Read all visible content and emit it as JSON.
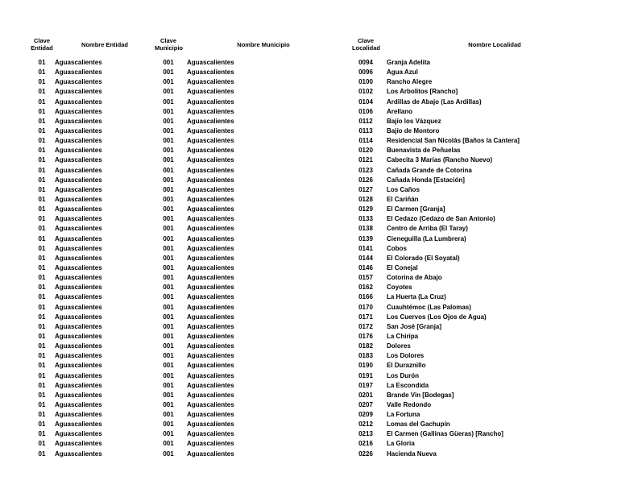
{
  "page": {
    "background": "#ffffff",
    "text_color": "#000000"
  },
  "table": {
    "headers": {
      "clave_entidad": "Clave Entidad",
      "nombre_entidad": "Nombre Entidad",
      "clave_municipio": "Clave Municipio",
      "nombre_municipio": "Nombre Municipio",
      "clave_localidad": "Clave Localidad",
      "nombre_localidad": "Nombre Localidad"
    },
    "rows": [
      {
        "clave_entidad": "01",
        "nombre_entidad": "Aguascalientes",
        "clave_municipio": "001",
        "nombre_municipio": "Aguascalientes",
        "clave_localidad": "0094",
        "nombre_localidad": "Granja Adelita"
      },
      {
        "clave_entidad": "01",
        "nombre_entidad": "Aguascalientes",
        "clave_municipio": "001",
        "nombre_municipio": "Aguascalientes",
        "clave_localidad": "0096",
        "nombre_localidad": "Agua Azul"
      },
      {
        "clave_entidad": "01",
        "nombre_entidad": "Aguascalientes",
        "clave_municipio": "001",
        "nombre_municipio": "Aguascalientes",
        "clave_localidad": "0100",
        "nombre_localidad": "Rancho Alegre"
      },
      {
        "clave_entidad": "01",
        "nombre_entidad": "Aguascalientes",
        "clave_municipio": "001",
        "nombre_municipio": "Aguascalientes",
        "clave_localidad": "0102",
        "nombre_localidad": "Los Arbolitos [Rancho]"
      },
      {
        "clave_entidad": "01",
        "nombre_entidad": "Aguascalientes",
        "clave_municipio": "001",
        "nombre_municipio": "Aguascalientes",
        "clave_localidad": "0104",
        "nombre_localidad": "Ardillas de Abajo (Las Ardillas)"
      },
      {
        "clave_entidad": "01",
        "nombre_entidad": "Aguascalientes",
        "clave_municipio": "001",
        "nombre_municipio": "Aguascalientes",
        "clave_localidad": "0106",
        "nombre_localidad": "Arellano"
      },
      {
        "clave_entidad": "01",
        "nombre_entidad": "Aguascalientes",
        "clave_municipio": "001",
        "nombre_municipio": "Aguascalientes",
        "clave_localidad": "0112",
        "nombre_localidad": "Bajío los Vázquez"
      },
      {
        "clave_entidad": "01",
        "nombre_entidad": "Aguascalientes",
        "clave_municipio": "001",
        "nombre_municipio": "Aguascalientes",
        "clave_localidad": "0113",
        "nombre_localidad": "Bajío de Montoro"
      },
      {
        "clave_entidad": "01",
        "nombre_entidad": "Aguascalientes",
        "clave_municipio": "001",
        "nombre_municipio": "Aguascalientes",
        "clave_localidad": "0114",
        "nombre_localidad": "Residencial San Nicolás [Baños la Cantera]"
      },
      {
        "clave_entidad": "01",
        "nombre_entidad": "Aguascalientes",
        "clave_municipio": "001",
        "nombre_municipio": "Aguascalientes",
        "clave_localidad": "0120",
        "nombre_localidad": "Buenavista de Peñuelas"
      },
      {
        "clave_entidad": "01",
        "nombre_entidad": "Aguascalientes",
        "clave_municipio": "001",
        "nombre_municipio": "Aguascalientes",
        "clave_localidad": "0121",
        "nombre_localidad": "Cabecita 3 Marías (Rancho Nuevo)"
      },
      {
        "clave_entidad": "01",
        "nombre_entidad": "Aguascalientes",
        "clave_municipio": "001",
        "nombre_municipio": "Aguascalientes",
        "clave_localidad": "0123",
        "nombre_localidad": "Cañada Grande de Cotorina"
      },
      {
        "clave_entidad": "01",
        "nombre_entidad": "Aguascalientes",
        "clave_municipio": "001",
        "nombre_municipio": "Aguascalientes",
        "clave_localidad": "0126",
        "nombre_localidad": "Cañada Honda [Estación]"
      },
      {
        "clave_entidad": "01",
        "nombre_entidad": "Aguascalientes",
        "clave_municipio": "001",
        "nombre_municipio": "Aguascalientes",
        "clave_localidad": "0127",
        "nombre_localidad": "Los Caños"
      },
      {
        "clave_entidad": "01",
        "nombre_entidad": "Aguascalientes",
        "clave_municipio": "001",
        "nombre_municipio": "Aguascalientes",
        "clave_localidad": "0128",
        "nombre_localidad": "El Cariñán"
      },
      {
        "clave_entidad": "01",
        "nombre_entidad": "Aguascalientes",
        "clave_municipio": "001",
        "nombre_municipio": "Aguascalientes",
        "clave_localidad": "0129",
        "nombre_localidad": "El Carmen [Granja]"
      },
      {
        "clave_entidad": "01",
        "nombre_entidad": "Aguascalientes",
        "clave_municipio": "001",
        "nombre_municipio": "Aguascalientes",
        "clave_localidad": "0133",
        "nombre_localidad": "El Cedazo (Cedazo de San Antonio)"
      },
      {
        "clave_entidad": "01",
        "nombre_entidad": "Aguascalientes",
        "clave_municipio": "001",
        "nombre_municipio": "Aguascalientes",
        "clave_localidad": "0138",
        "nombre_localidad": "Centro de Arriba (El Taray)"
      },
      {
        "clave_entidad": "01",
        "nombre_entidad": "Aguascalientes",
        "clave_municipio": "001",
        "nombre_municipio": "Aguascalientes",
        "clave_localidad": "0139",
        "nombre_localidad": "Cieneguilla (La Lumbrera)"
      },
      {
        "clave_entidad": "01",
        "nombre_entidad": "Aguascalientes",
        "clave_municipio": "001",
        "nombre_municipio": "Aguascalientes",
        "clave_localidad": "0141",
        "nombre_localidad": "Cobos"
      },
      {
        "clave_entidad": "01",
        "nombre_entidad": "Aguascalientes",
        "clave_municipio": "001",
        "nombre_municipio": "Aguascalientes",
        "clave_localidad": "0144",
        "nombre_localidad": "El Colorado (El Soyatal)"
      },
      {
        "clave_entidad": "01",
        "nombre_entidad": "Aguascalientes",
        "clave_municipio": "001",
        "nombre_municipio": "Aguascalientes",
        "clave_localidad": "0146",
        "nombre_localidad": "El Conejal"
      },
      {
        "clave_entidad": "01",
        "nombre_entidad": "Aguascalientes",
        "clave_municipio": "001",
        "nombre_municipio": "Aguascalientes",
        "clave_localidad": "0157",
        "nombre_localidad": "Cotorina de Abajo"
      },
      {
        "clave_entidad": "01",
        "nombre_entidad": "Aguascalientes",
        "clave_municipio": "001",
        "nombre_municipio": "Aguascalientes",
        "clave_localidad": "0162",
        "nombre_localidad": "Coyotes"
      },
      {
        "clave_entidad": "01",
        "nombre_entidad": "Aguascalientes",
        "clave_municipio": "001",
        "nombre_municipio": "Aguascalientes",
        "clave_localidad": "0166",
        "nombre_localidad": "La Huerta (La Cruz)"
      },
      {
        "clave_entidad": "01",
        "nombre_entidad": "Aguascalientes",
        "clave_municipio": "001",
        "nombre_municipio": "Aguascalientes",
        "clave_localidad": "0170",
        "nombre_localidad": "Cuauhtémoc (Las Palomas)"
      },
      {
        "clave_entidad": "01",
        "nombre_entidad": "Aguascalientes",
        "clave_municipio": "001",
        "nombre_municipio": "Aguascalientes",
        "clave_localidad": "0171",
        "nombre_localidad": "Los Cuervos (Los Ojos de Agua)"
      },
      {
        "clave_entidad": "01",
        "nombre_entidad": "Aguascalientes",
        "clave_municipio": "001",
        "nombre_municipio": "Aguascalientes",
        "clave_localidad": "0172",
        "nombre_localidad": "San José [Granja]"
      },
      {
        "clave_entidad": "01",
        "nombre_entidad": "Aguascalientes",
        "clave_municipio": "001",
        "nombre_municipio": "Aguascalientes",
        "clave_localidad": "0176",
        "nombre_localidad": "La Chiripa"
      },
      {
        "clave_entidad": "01",
        "nombre_entidad": "Aguascalientes",
        "clave_municipio": "001",
        "nombre_municipio": "Aguascalientes",
        "clave_localidad": "0182",
        "nombre_localidad": "Dolores"
      },
      {
        "clave_entidad": "01",
        "nombre_entidad": "Aguascalientes",
        "clave_municipio": "001",
        "nombre_municipio": "Aguascalientes",
        "clave_localidad": "0183",
        "nombre_localidad": "Los Dolores"
      },
      {
        "clave_entidad": "01",
        "nombre_entidad": "Aguascalientes",
        "clave_municipio": "001",
        "nombre_municipio": "Aguascalientes",
        "clave_localidad": "0190",
        "nombre_localidad": "El Duraznillo"
      },
      {
        "clave_entidad": "01",
        "nombre_entidad": "Aguascalientes",
        "clave_municipio": "001",
        "nombre_municipio": "Aguascalientes",
        "clave_localidad": "0191",
        "nombre_localidad": "Los Durón"
      },
      {
        "clave_entidad": "01",
        "nombre_entidad": "Aguascalientes",
        "clave_municipio": "001",
        "nombre_municipio": "Aguascalientes",
        "clave_localidad": "0197",
        "nombre_localidad": "La Escondida"
      },
      {
        "clave_entidad": "01",
        "nombre_entidad": "Aguascalientes",
        "clave_municipio": "001",
        "nombre_municipio": "Aguascalientes",
        "clave_localidad": "0201",
        "nombre_localidad": "Brande Vin [Bodegas]"
      },
      {
        "clave_entidad": "01",
        "nombre_entidad": "Aguascalientes",
        "clave_municipio": "001",
        "nombre_municipio": "Aguascalientes",
        "clave_localidad": "0207",
        "nombre_localidad": "Valle Redondo"
      },
      {
        "clave_entidad": "01",
        "nombre_entidad": "Aguascalientes",
        "clave_municipio": "001",
        "nombre_municipio": "Aguascalientes",
        "clave_localidad": "0209",
        "nombre_localidad": "La Fortuna"
      },
      {
        "clave_entidad": "01",
        "nombre_entidad": "Aguascalientes",
        "clave_municipio": "001",
        "nombre_municipio": "Aguascalientes",
        "clave_localidad": "0212",
        "nombre_localidad": "Lomas del Gachupín"
      },
      {
        "clave_entidad": "01",
        "nombre_entidad": "Aguascalientes",
        "clave_municipio": "001",
        "nombre_municipio": "Aguascalientes",
        "clave_localidad": "0213",
        "nombre_localidad": "El Carmen (Gallinas Güeras) [Rancho]"
      },
      {
        "clave_entidad": "01",
        "nombre_entidad": "Aguascalientes",
        "clave_municipio": "001",
        "nombre_municipio": "Aguascalientes",
        "clave_localidad": "0216",
        "nombre_localidad": "La Gloria"
      },
      {
        "clave_entidad": "01",
        "nombre_entidad": "Aguascalientes",
        "clave_municipio": "001",
        "nombre_municipio": "Aguascalientes",
        "clave_localidad": "0226",
        "nombre_localidad": "Hacienda Nueva"
      }
    ]
  }
}
